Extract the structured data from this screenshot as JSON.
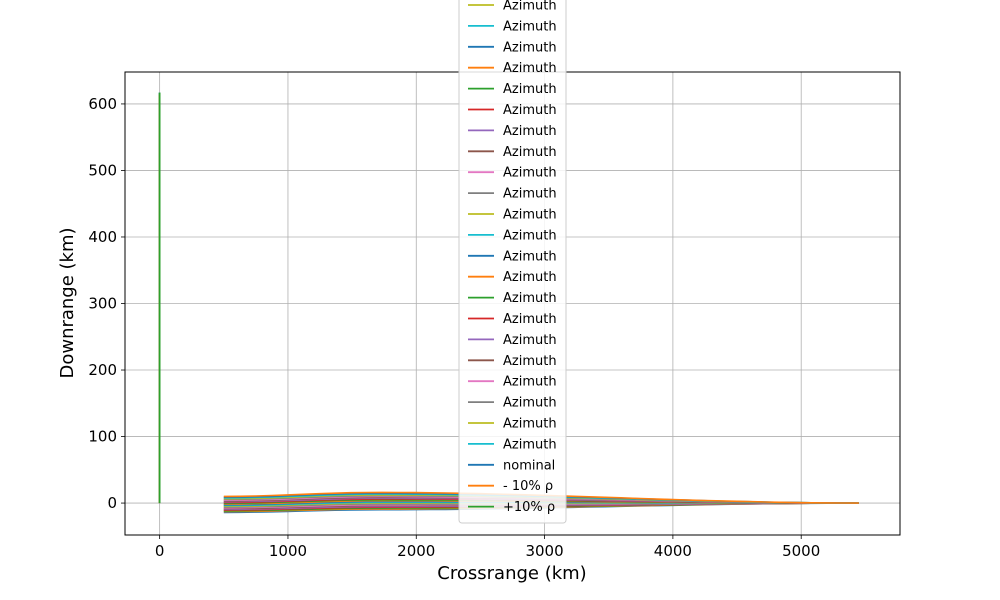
{
  "chart_data": {
    "type": "line",
    "xlabel": "Crossrange (km)",
    "ylabel": "Downrange (km)",
    "xlim": [
      -270,
      5770
    ],
    "ylim": [
      -48,
      648
    ],
    "xticks": [
      0,
      1000,
      2000,
      3000,
      4000,
      5000
    ],
    "yticks": [
      0,
      100,
      200,
      300,
      400,
      500,
      600
    ],
    "grid": true,
    "legend_placement": "top-center, extends above plot area",
    "colors": [
      "#1f77b4",
      "#ff7f0e",
      "#2ca02c",
      "#d62728",
      "#9467bd",
      "#8c564b",
      "#e377c2",
      "#7f7f7f",
      "#bcbd22",
      "#17becf"
    ],
    "legend": [
      {
        "label": "Azimuth",
        "color": "#bcbd22"
      },
      {
        "label": "Azimuth",
        "color": "#17becf"
      },
      {
        "label": "Azimuth",
        "color": "#1f77b4"
      },
      {
        "label": "Azimuth",
        "color": "#ff7f0e"
      },
      {
        "label": "Azimuth",
        "color": "#2ca02c"
      },
      {
        "label": "Azimuth",
        "color": "#d62728"
      },
      {
        "label": "Azimuth",
        "color": "#9467bd"
      },
      {
        "label": "Azimuth",
        "color": "#8c564b"
      },
      {
        "label": "Azimuth",
        "color": "#e377c2"
      },
      {
        "label": "Azimuth",
        "color": "#7f7f7f"
      },
      {
        "label": "Azimuth",
        "color": "#bcbd22"
      },
      {
        "label": "Azimuth",
        "color": "#17becf"
      },
      {
        "label": "Azimuth",
        "color": "#1f77b4"
      },
      {
        "label": "Azimuth",
        "color": "#ff7f0e"
      },
      {
        "label": "Azimuth",
        "color": "#2ca02c"
      },
      {
        "label": "Azimuth",
        "color": "#d62728"
      },
      {
        "label": "Azimuth",
        "color": "#9467bd"
      },
      {
        "label": "Azimuth",
        "color": "#8c564b"
      },
      {
        "label": "Azimuth",
        "color": "#e377c2"
      },
      {
        "label": "Azimuth",
        "color": "#7f7f7f"
      },
      {
        "label": "Azimuth",
        "color": "#bcbd22"
      },
      {
        "label": "Azimuth",
        "color": "#17becf"
      },
      {
        "label": "nominal",
        "color": "#1f77b4"
      },
      {
        "label": "- 10% ρ",
        "color": "#ff7f0e"
      },
      {
        "label": "+10% ρ",
        "color": "#2ca02c"
      }
    ],
    "azimuth_fan": {
      "series_count": 22,
      "start_x": 500,
      "end_x": 5450,
      "start_y_range": [
        -14,
        10
      ],
      "peak_y_range": [
        -10,
        16
      ]
    },
    "series": [
      {
        "name": "nominal",
        "color": "#1f77b4",
        "x": [
          0,
          0,
          0,
          0,
          0
        ],
        "y": [
          0,
          150,
          300,
          450,
          617
        ]
      },
      {
        "name": "- 10% ρ",
        "color": "#ff7f0e",
        "x": [
          0,
          0,
          0,
          0,
          0
        ],
        "y": [
          0,
          150,
          300,
          450,
          614
        ]
      },
      {
        "name": "+10% ρ",
        "color": "#2ca02c",
        "x": [
          0,
          0,
          0,
          0,
          0
        ],
        "y": [
          0,
          150,
          300,
          450,
          617
        ]
      }
    ]
  }
}
